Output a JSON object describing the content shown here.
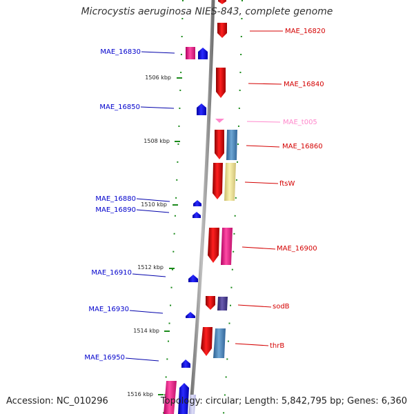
{
  "title": "Microcystis aeruginosa NIES-843, complete genome",
  "accession": "Accession: NC_010296",
  "summary": "Topology: circular; Length: 5,842,795 bp; Genes: 6,360",
  "colors": {
    "backbone": "#8c8c8c",
    "dot_ring": "#1a8a1a",
    "label_blue": "#0000cc",
    "label_red": "#d40000",
    "label_pink": "#ff88cc"
  },
  "coordinate_labels": [
    "1506 kbp",
    "1508 kbp",
    "1510 kbp",
    "1512 kbp",
    "1514 kbp",
    "1516 kbp"
  ],
  "genes": [
    {
      "name": "MAE_16820",
      "side": "right",
      "color": "#d40000"
    },
    {
      "name": "MAE_16830",
      "side": "left",
      "color": "#0000aa"
    },
    {
      "name": "MAE_16840",
      "side": "right",
      "color": "#d40000"
    },
    {
      "name": "MAE_16850",
      "side": "left",
      "color": "#0000aa"
    },
    {
      "name": "MAE_t005",
      "side": "right",
      "color": "#ff88cc"
    },
    {
      "name": "MAE_16860",
      "side": "right",
      "color": "#d40000"
    },
    {
      "name": "ftsW",
      "side": "right",
      "color": "#d40000"
    },
    {
      "name": "MAE_16880",
      "side": "left",
      "color": "#0000aa"
    },
    {
      "name": "MAE_16890",
      "side": "left",
      "color": "#0000aa"
    },
    {
      "name": "MAE_16900",
      "side": "right",
      "color": "#d40000"
    },
    {
      "name": "MAE_16910",
      "side": "left",
      "color": "#0000aa"
    },
    {
      "name": "sodB",
      "side": "right",
      "color": "#d40000"
    },
    {
      "name": "MAE_16930",
      "side": "left",
      "color": "#0000aa"
    },
    {
      "name": "thrB",
      "side": "right",
      "color": "#d40000"
    },
    {
      "name": "MAE_16950",
      "side": "left",
      "color": "#0000aa"
    }
  ]
}
